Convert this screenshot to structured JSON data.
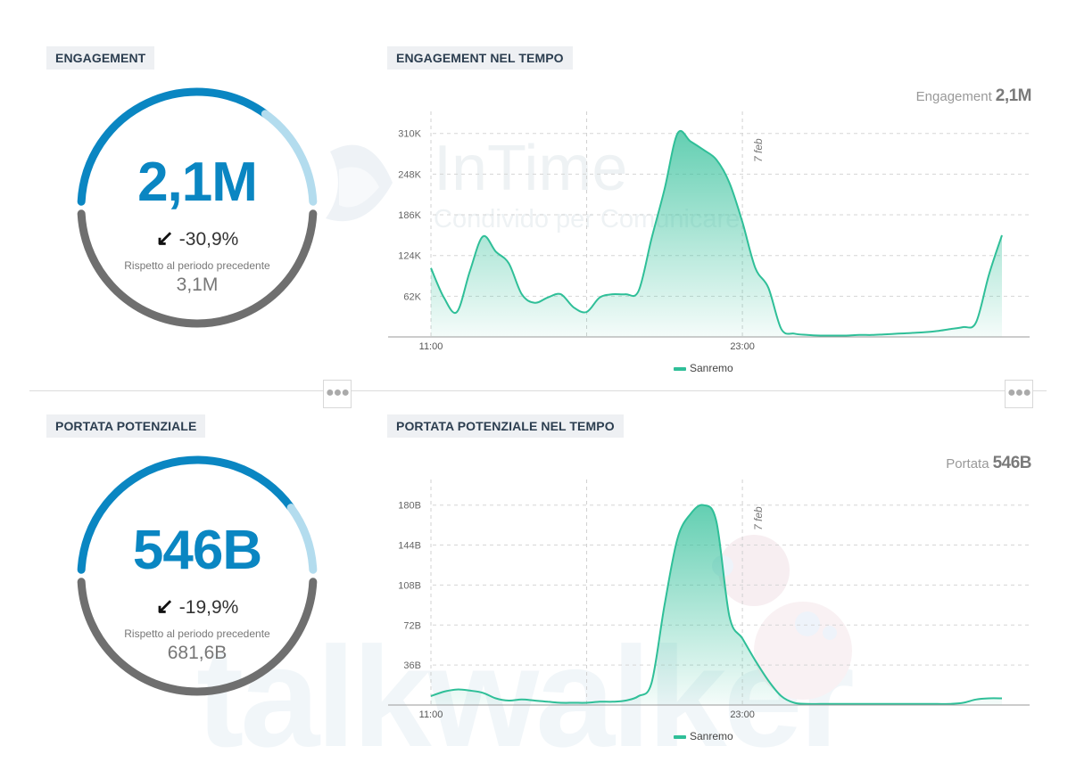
{
  "panels": {
    "engagement": {
      "title": "ENGAGEMENT",
      "value": "2,1M",
      "change": "-30,9%",
      "note": "Rispetto al periodo precedente",
      "previous": "3,1M",
      "progress": 0.7
    },
    "reach": {
      "title": "PORTATA POTENZIALE",
      "value": "546B",
      "change": "-19,9%",
      "note": "Rispetto al periodo precedente",
      "previous": "681,6B",
      "progress": 0.8
    }
  },
  "charts_meta": {
    "engagement": {
      "title": "ENGAGEMENT NEL TEMPO",
      "total_label": "Engagement",
      "total_value": "2,1M"
    },
    "reach": {
      "title": "PORTATA POTENZIALE NEL TEMPO",
      "total_label": "Portata",
      "total_value": "546B"
    }
  },
  "watermarks": {
    "intime": "InTime",
    "intime_sub": "Condivido per Comunicare",
    "talkwalker": "talkwalker"
  },
  "colors": {
    "accent": "#0a86c2",
    "accent_light": "#b3dcee",
    "gauge_grey": "#6f6f6f",
    "series": "#2fbf98",
    "title_bg": "#eef0f3"
  },
  "icons": {
    "change_arrow": "arrow-down-left-icon",
    "more": "more-horizontal-icon"
  },
  "chart_data": [
    {
      "type": "area",
      "title": "ENGAGEMENT NEL TEMPO",
      "xlabel": "",
      "ylabel": "",
      "x_ticks": [
        "11:00",
        "23:00"
      ],
      "y_ticks": [
        "62K",
        "124K",
        "186K",
        "248K",
        "310K"
      ],
      "ylim": [
        0,
        330000
      ],
      "annotation": "7 feb",
      "grid": true,
      "legend": "bottom-center",
      "series": [
        {
          "name": "Sanremo",
          "hours": [
            0,
            0.5,
            1,
            1.5,
            2,
            2.5,
            3,
            3.5,
            4,
            4.5,
            5,
            5.5,
            6,
            6.5,
            7,
            7.5,
            8,
            8.5,
            9,
            9.5,
            10,
            10.5,
            11,
            11.5,
            12,
            12.5,
            13,
            13.5,
            14,
            14.5,
            15,
            15.5,
            16,
            16.5,
            17,
            17.5,
            18,
            18.5,
            19,
            19.5,
            20,
            20.5,
            21,
            21.5,
            22
          ],
          "values": [
            105000,
            60000,
            38000,
            100000,
            153000,
            130000,
            112000,
            65000,
            52000,
            60000,
            65000,
            45000,
            38000,
            60000,
            65000,
            65000,
            70000,
            150000,
            225000,
            310000,
            298000,
            285000,
            270000,
            235000,
            175000,
            105000,
            75000,
            12000,
            5000,
            3000,
            2000,
            2000,
            2000,
            3000,
            3000,
            4000,
            5000,
            6000,
            7000,
            9000,
            12000,
            15000,
            22000,
            95000,
            155000
          ]
        }
      ]
    },
    {
      "type": "area",
      "title": "PORTATA POTENZIALE NEL TEMPO",
      "xlabel": "",
      "ylabel": "",
      "x_ticks": [
        "11:00",
        "23:00"
      ],
      "y_ticks": [
        "36B",
        "72B",
        "108B",
        "144B",
        "180B"
      ],
      "ylim": [
        0,
        195
      ],
      "annotation": "7 feb",
      "grid": true,
      "legend": "bottom-center",
      "series": [
        {
          "name": "Sanremo",
          "hours": [
            0,
            0.5,
            1,
            1.5,
            2,
            2.5,
            3,
            3.5,
            4,
            4.5,
            5,
            5.5,
            6,
            6.5,
            7,
            7.5,
            8,
            8.5,
            9,
            9.5,
            10,
            10.5,
            11,
            11.5,
            12,
            12.5,
            13,
            13.5,
            14,
            14.5,
            15,
            15.5,
            16,
            16.5,
            17,
            17.5,
            18,
            18.5,
            19,
            19.5,
            20,
            20.5,
            21,
            21.5,
            22
          ],
          "values": [
            8,
            12,
            14,
            13,
            11,
            6,
            4,
            5,
            4,
            3,
            2,
            2,
            2,
            3,
            3,
            4,
            8,
            20,
            90,
            150,
            172,
            180,
            165,
            80,
            60,
            40,
            22,
            8,
            2,
            1,
            1,
            1,
            1,
            1,
            1,
            1,
            1,
            1,
            1,
            1,
            1,
            2,
            5,
            6,
            6
          ]
        }
      ]
    }
  ]
}
